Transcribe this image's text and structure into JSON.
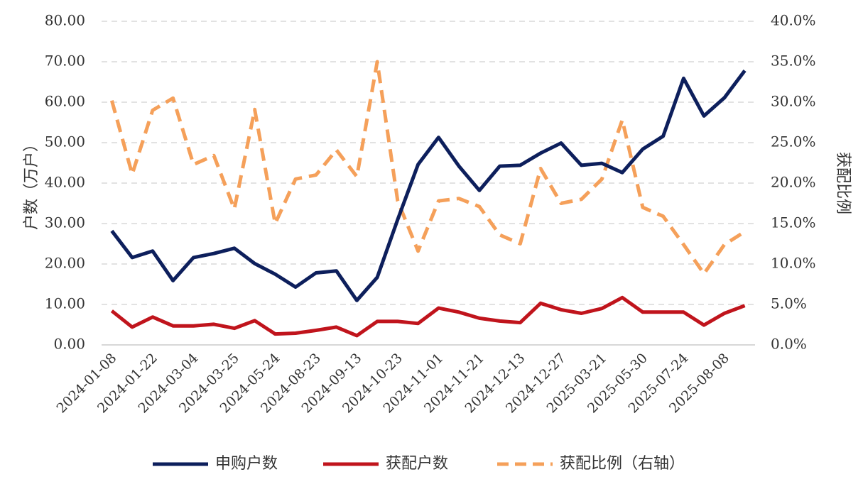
{
  "chart_data": {
    "type": "line",
    "categories": [
      "2024-01-08",
      "2024-01-22",
      "2024-03-04",
      "2024-03-25",
      "2024-05-24",
      "2024-08-23",
      "2024-09-13",
      "2024-10-23",
      "2024-11-01",
      "2024-11-21",
      "2024-12-13",
      "2024-12-27",
      "2025-03-21",
      "2025-05-30",
      "2025-07-24",
      "2025-08-08"
    ],
    "x": [
      "p1",
      "p2",
      "p3",
      "p4",
      "p5",
      "p6",
      "p7",
      "p8",
      "p9",
      "p10",
      "p11",
      "p12",
      "p13",
      "p14",
      "p15",
      "p16",
      "p17",
      "p18",
      "p19",
      "p20",
      "p21",
      "p22",
      "p23",
      "p24",
      "p25",
      "p26",
      "p27",
      "p28",
      "p29",
      "p30",
      "p31",
      "p32"
    ],
    "series": [
      {
        "name": "申购户数",
        "axis": "left",
        "color": "#0d1f5c",
        "style": "solid",
        "values": [
          28.2,
          21.6,
          23.2,
          15.9,
          21.6,
          22.6,
          23.9,
          20.1,
          17.5,
          14.3,
          17.8,
          18.3,
          11.0,
          16.7,
          31.0,
          44.6,
          51.3,
          44.2,
          38.2,
          44.2,
          44.4,
          47.4,
          49.9,
          44.4,
          44.9,
          42.6,
          48.4,
          51.6,
          65.9,
          56.6,
          61.1,
          67.8
        ]
      },
      {
        "name": "获配户数",
        "axis": "left",
        "color": "#c0141c",
        "style": "solid",
        "values": [
          8.4,
          4.4,
          6.9,
          4.7,
          4.7,
          5.1,
          4.1,
          6.0,
          2.7,
          2.9,
          3.6,
          4.4,
          2.3,
          5.8,
          5.8,
          5.3,
          9.1,
          8.1,
          6.6,
          5.9,
          5.5,
          10.3,
          8.7,
          7.8,
          9.0,
          11.7,
          8.1,
          8.1,
          8.1,
          4.9,
          7.8,
          9.7
        ]
      },
      {
        "name": "获配比例（右轴）",
        "axis": "right",
        "color": "#f5a05a",
        "style": "dashed",
        "values": [
          30.2,
          21.1,
          29.0,
          30.5,
          22.3,
          23.4,
          16.8,
          29.1,
          15.0,
          20.5,
          21.0,
          24.1,
          20.8,
          35.0,
          17.8,
          11.6,
          17.8,
          18.1,
          17.1,
          13.6,
          12.5,
          21.8,
          17.5,
          18.0,
          20.5,
          27.8,
          17.0,
          15.9,
          12.4,
          8.8,
          12.4,
          14.0
        ]
      }
    ],
    "ylabel": "户数（万户）",
    "ylabel_right": "获配比例",
    "ylim": [
      0,
      80
    ],
    "ylim_right": [
      0,
      40
    ],
    "yticks_left": [
      "0.00",
      "10.00",
      "20.00",
      "30.00",
      "40.00",
      "50.00",
      "60.00",
      "70.00",
      "80.00"
    ],
    "yticks_right": [
      "0.0%",
      "5.0%",
      "10.0%",
      "15.0%",
      "20.0%",
      "25.0%",
      "30.0%",
      "35.0%",
      "40.0%"
    ],
    "grid": true,
    "legend_position": "bottom"
  }
}
